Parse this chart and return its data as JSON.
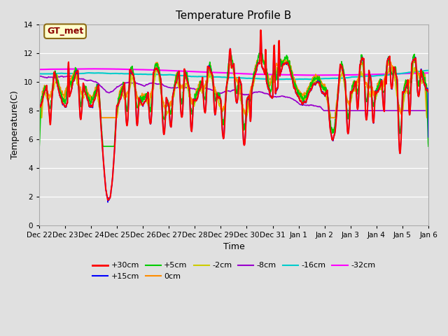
{
  "title": "Temperature Profile B",
  "xlabel": "Time",
  "ylabel": "Temperature(C)",
  "ylim": [
    0,
    14
  ],
  "yticks": [
    0,
    2,
    4,
    6,
    8,
    10,
    12,
    14
  ],
  "annotation_text": "GT_met",
  "annotation_color": "#8B0000",
  "annotation_bg": "#FFFFCC",
  "annotation_border": "#8B6914",
  "series_colors": {
    "+30cm": "#FF0000",
    "+15cm": "#0000FF",
    "+5cm": "#00CC00",
    "0cm": "#FF8C00",
    "-2cm": "#CCCC00",
    "-8cm": "#9900CC",
    "-16cm": "#00CCCC",
    "-32cm": "#FF00FF"
  },
  "background_color": "#E0E0E0",
  "plot_bg_color": "#E0E0E0",
  "grid_color": "#FFFFFF",
  "tick_label_fontsize": 7.5,
  "axis_label_fontsize": 9,
  "title_fontsize": 11,
  "legend_fontsize": 8
}
